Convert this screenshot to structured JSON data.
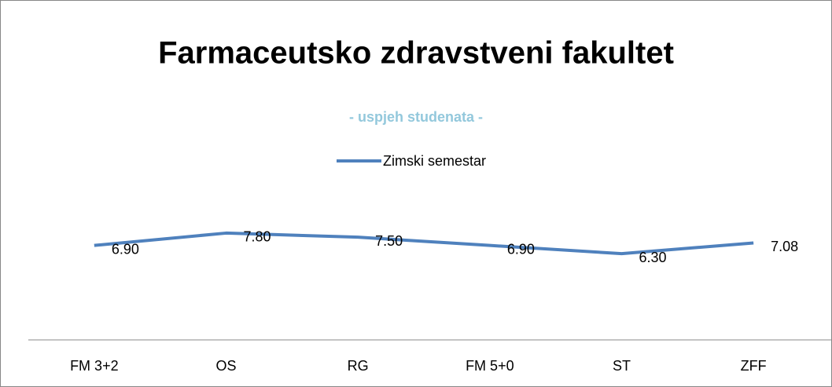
{
  "chart_data": {
    "type": "line",
    "title": "Farmaceutsko zdravstveni fakultet",
    "subtitle": "- uspjeh studenata -",
    "categories": [
      "FM 3+2",
      "OS",
      "RG",
      "FM 5+0",
      "ST",
      "ZFF"
    ],
    "series": [
      {
        "name": "Zimski semestar",
        "color": "#4f81bd",
        "values": [
          6.9,
          7.8,
          7.5,
          6.9,
          6.3,
          7.08
        ],
        "value_labels": [
          "6.90",
          "7.80",
          "7.50",
          "6.90",
          "6.30",
          "7.08"
        ]
      }
    ],
    "ylim": [
      0,
      9
    ],
    "legend": "top"
  }
}
